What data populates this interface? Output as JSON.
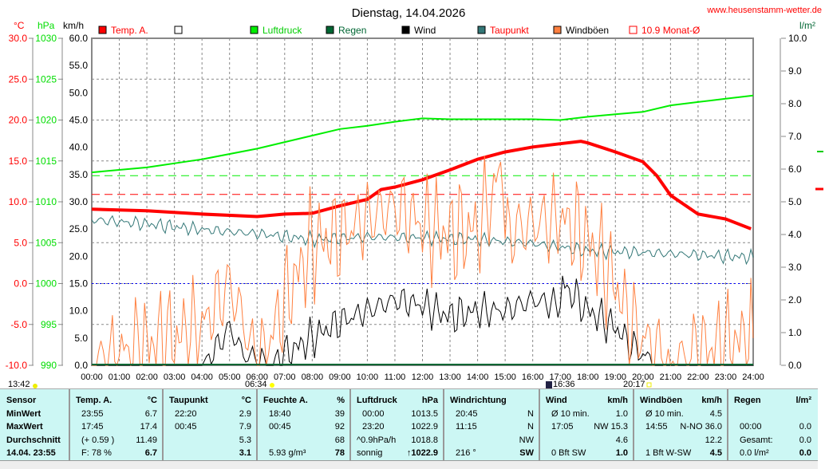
{
  "header": {
    "title": "Dienstag, 14.04.2026",
    "website": "www.heusenstamm-wetter.de"
  },
  "colors": {
    "temp": "#ff0000",
    "pressure": "#00ee00",
    "rain": "#006633",
    "wind": "#000000",
    "dewpoint": "#337777",
    "gusts": "#ff8040",
    "avg": "#ff0000",
    "zero": "#0000ff"
  },
  "chart_data": {
    "type": "line",
    "title": "Dienstag, 14.04.2026",
    "axes": {
      "temp_label": "°C",
      "temp_range": [
        -10,
        30
      ],
      "temp_ticks": [
        "30.0",
        "25.0",
        "20.0",
        "15.0",
        "10.0",
        "5.0",
        "0.0",
        "-5.0",
        "-10.0"
      ],
      "hpa_label": "hPa",
      "hpa_range": [
        990,
        1030
      ],
      "hpa_ticks": [
        "1030",
        "1025",
        "1020",
        "1015",
        "1010",
        "1005",
        "1000",
        "995",
        "990"
      ],
      "kmh_label": "km/h",
      "kmh_range": [
        0,
        60
      ],
      "kmh_ticks": [
        "60.0",
        "55.0",
        "50.0",
        "45.0",
        "40.0",
        "35.0",
        "30.0",
        "25.0",
        "20.0",
        "15.0",
        "10.0",
        "5.0",
        "0.0"
      ],
      "rain_label": "l/m²",
      "rain_range": [
        0,
        10
      ],
      "rain_ticks": [
        "10.0",
        "9.0",
        "8.0",
        "7.0",
        "6.0",
        "5.0",
        "4.0",
        "3.0",
        "2.0",
        "1.0",
        "0.0"
      ],
      "x_ticks": [
        "00:00",
        "01:00",
        "02:00",
        "03:00",
        "04:00",
        "05:00",
        "06:00",
        "07:00",
        "08:00",
        "09:00",
        "10:00",
        "11:00",
        "12:00",
        "13:00",
        "14:00",
        "15:00",
        "16:00",
        "17:00",
        "18:00",
        "19:00",
        "20:00",
        "21:00",
        "22:00",
        "23:00",
        "24:00"
      ]
    },
    "legend": [
      {
        "name": "Temp. A.",
        "color": "#ff0000",
        "text": "#ff0000"
      },
      {
        "name": "",
        "color": "#ffffff",
        "text": "#000000"
      },
      {
        "name": "Luftdruck",
        "color": "#00ee00",
        "text": "#00cc00"
      },
      {
        "name": "Regen",
        "color": "#006633",
        "text": "#006633"
      },
      {
        "name": "Wind",
        "color": "#000000",
        "text": "#000000"
      },
      {
        "name": "Taupunkt",
        "color": "#337777",
        "text": "#ff0000"
      },
      {
        "name": "Windböen",
        "color": "#ff8040",
        "text": "#000000"
      },
      {
        "name": "10.9 Monat-Ø",
        "color": "#ff0000",
        "text": "#ff0000"
      }
    ],
    "series": [
      {
        "name": "Temp. A.",
        "axis": "temp",
        "x": [
          0,
          2,
          4,
          6,
          7,
          8,
          9,
          10,
          10.5,
          11,
          12,
          13,
          14,
          15,
          16,
          17,
          17.75,
          18,
          19,
          20,
          20.5,
          21,
          22,
          23,
          23.92
        ],
        "y": [
          9.1,
          8.9,
          8.5,
          8.2,
          8.5,
          8.6,
          9.5,
          10.3,
          11.5,
          11.8,
          12.7,
          13.9,
          15.2,
          16.1,
          16.7,
          17.1,
          17.4,
          17.2,
          16.1,
          14.9,
          13.2,
          10.8,
          8.5,
          7.9,
          6.7
        ]
      },
      {
        "name": "Luftdruck",
        "axis": "hpa",
        "x": [
          0,
          2,
          4,
          6,
          8,
          9,
          10,
          11,
          12,
          13,
          14,
          16,
          17,
          18,
          19,
          20,
          21,
          22,
          23,
          24
        ],
        "y": [
          1013.6,
          1014.2,
          1015.2,
          1016.5,
          1018.1,
          1018.9,
          1019.3,
          1019.8,
          1020.2,
          1020.1,
          1020.1,
          1020.1,
          1020.0,
          1020.4,
          1020.7,
          1021.0,
          1021.8,
          1022.2,
          1022.6,
          1023.0
        ]
      },
      {
        "name": "Taupunkt",
        "axis": "temp",
        "x": [
          0,
          2,
          4,
          6,
          8,
          10,
          12,
          14,
          16,
          18,
          20,
          22,
          24
        ],
        "y": [
          7.8,
          7.3,
          6.6,
          6.1,
          5.4,
          5.7,
          5.6,
          5.4,
          4.9,
          4.0,
          3.8,
          3.5,
          3.2
        ]
      },
      {
        "name": "Wind",
        "axis": "kmh",
        "x": [
          0,
          4,
          4.5,
          5,
          5.5,
          6.5,
          7,
          8,
          9,
          10,
          11,
          12,
          13,
          14,
          15,
          16,
          17,
          17.08,
          18,
          19,
          19.5,
          20,
          20.5,
          24
        ],
        "y": [
          0,
          0,
          3,
          7,
          2,
          0,
          2,
          5,
          8,
          10,
          12,
          11,
          9,
          10,
          10,
          12,
          11,
          15,
          10,
          7,
          4,
          2,
          0,
          0
        ]
      },
      {
        "name": "Windböen",
        "axis": "kmh",
        "x": [
          0,
          1,
          2,
          3,
          4,
          5,
          5.5,
          6,
          6.5,
          7,
          8,
          9,
          10,
          11,
          12,
          13,
          14,
          14.92,
          15,
          16,
          17,
          18,
          19,
          19.5,
          20,
          20.5,
          21,
          22,
          23,
          24
        ],
        "y": [
          0,
          2,
          4,
          5,
          7,
          15,
          8,
          0,
          5,
          12,
          22,
          24,
          27,
          29,
          26,
          24,
          25,
          36,
          24,
          26,
          27,
          23,
          15,
          8,
          5,
          3,
          0,
          3,
          4,
          5
        ]
      }
    ],
    "reference_lines": [
      {
        "label": "10.9 Monat-Ø",
        "axis": "temp",
        "value": 10.9
      },
      {
        "axis": "hpa",
        "value": 1013.2
      },
      {
        "axis": "temp",
        "value": 0
      }
    ]
  },
  "astro": {
    "moonset": "13:42",
    "sunrise": "06:34",
    "moonrise": "16:36",
    "sunset": "20:17"
  },
  "table": [
    {
      "h": [
        "Sensor",
        ""
      ],
      "rows": [
        [
          "MinWert",
          ""
        ],
        [
          "MaxWert",
          ""
        ],
        [
          "Durchschnitt",
          ""
        ],
        [
          "14.04. 23:55",
          ""
        ]
      ]
    },
    {
      "h": [
        "Temp. A.",
        "°C"
      ],
      "rows": [
        [
          "23:55",
          "6.7"
        ],
        [
          "17:45",
          "17.4"
        ],
        [
          "(+ 0.59 )",
          "11.49"
        ],
        [
          "F: 78 %",
          "6.7"
        ]
      ]
    },
    {
      "h": [
        "Taupunkt",
        "°C"
      ],
      "rows": [
        [
          "22:20",
          "2.9"
        ],
        [
          "00:45",
          "7.9"
        ],
        [
          "",
          "5.3"
        ],
        [
          "",
          "3.1"
        ]
      ]
    },
    {
      "h": [
        "Feuchte A.",
        "%"
      ],
      "rows": [
        [
          "18:40",
          "39"
        ],
        [
          "00:45",
          "92"
        ],
        [
          "",
          "68"
        ],
        [
          "5.93 g/m³",
          "78"
        ]
      ]
    },
    {
      "h": [
        "Luftdruck",
        "hPa"
      ],
      "rows": [
        [
          "00:00",
          "1013.5"
        ],
        [
          "23:20",
          "1022.9"
        ],
        [
          "^0.9hPa/h",
          "1018.8"
        ],
        [
          "sonnig",
          "↑1022.9"
        ]
      ]
    },
    {
      "h": [
        "Windrichtung",
        ""
      ],
      "rows": [
        [
          "20:45",
          "N"
        ],
        [
          "11:15",
          "N"
        ],
        [
          "",
          "NW"
        ],
        [
          "216 °",
          "SW"
        ]
      ]
    },
    {
      "h": [
        "Wind",
        "km/h"
      ],
      "rows": [
        [
          "Ø 10 min.",
          "1.0"
        ],
        [
          "17:05",
          "NW 15.3"
        ],
        [
          "",
          "4.6"
        ],
        [
          "0 Bft SW",
          "1.0"
        ]
      ]
    },
    {
      "h": [
        "Windböen",
        "km/h"
      ],
      "rows": [
        [
          "Ø 10 min.",
          "4.5"
        ],
        [
          "14:55",
          "N-NO 36.0"
        ],
        [
          "",
          "12.2"
        ],
        [
          "1 Bft W-SW",
          "4.5"
        ]
      ]
    },
    {
      "h": [
        "Regen",
        "l/m²"
      ],
      "rows": [
        [
          "",
          ""
        ],
        [
          "00:00",
          "0.0"
        ],
        [
          "Gesamt:",
          "0.0"
        ],
        [
          "0.0 l/m²",
          "0.0"
        ]
      ]
    }
  ]
}
